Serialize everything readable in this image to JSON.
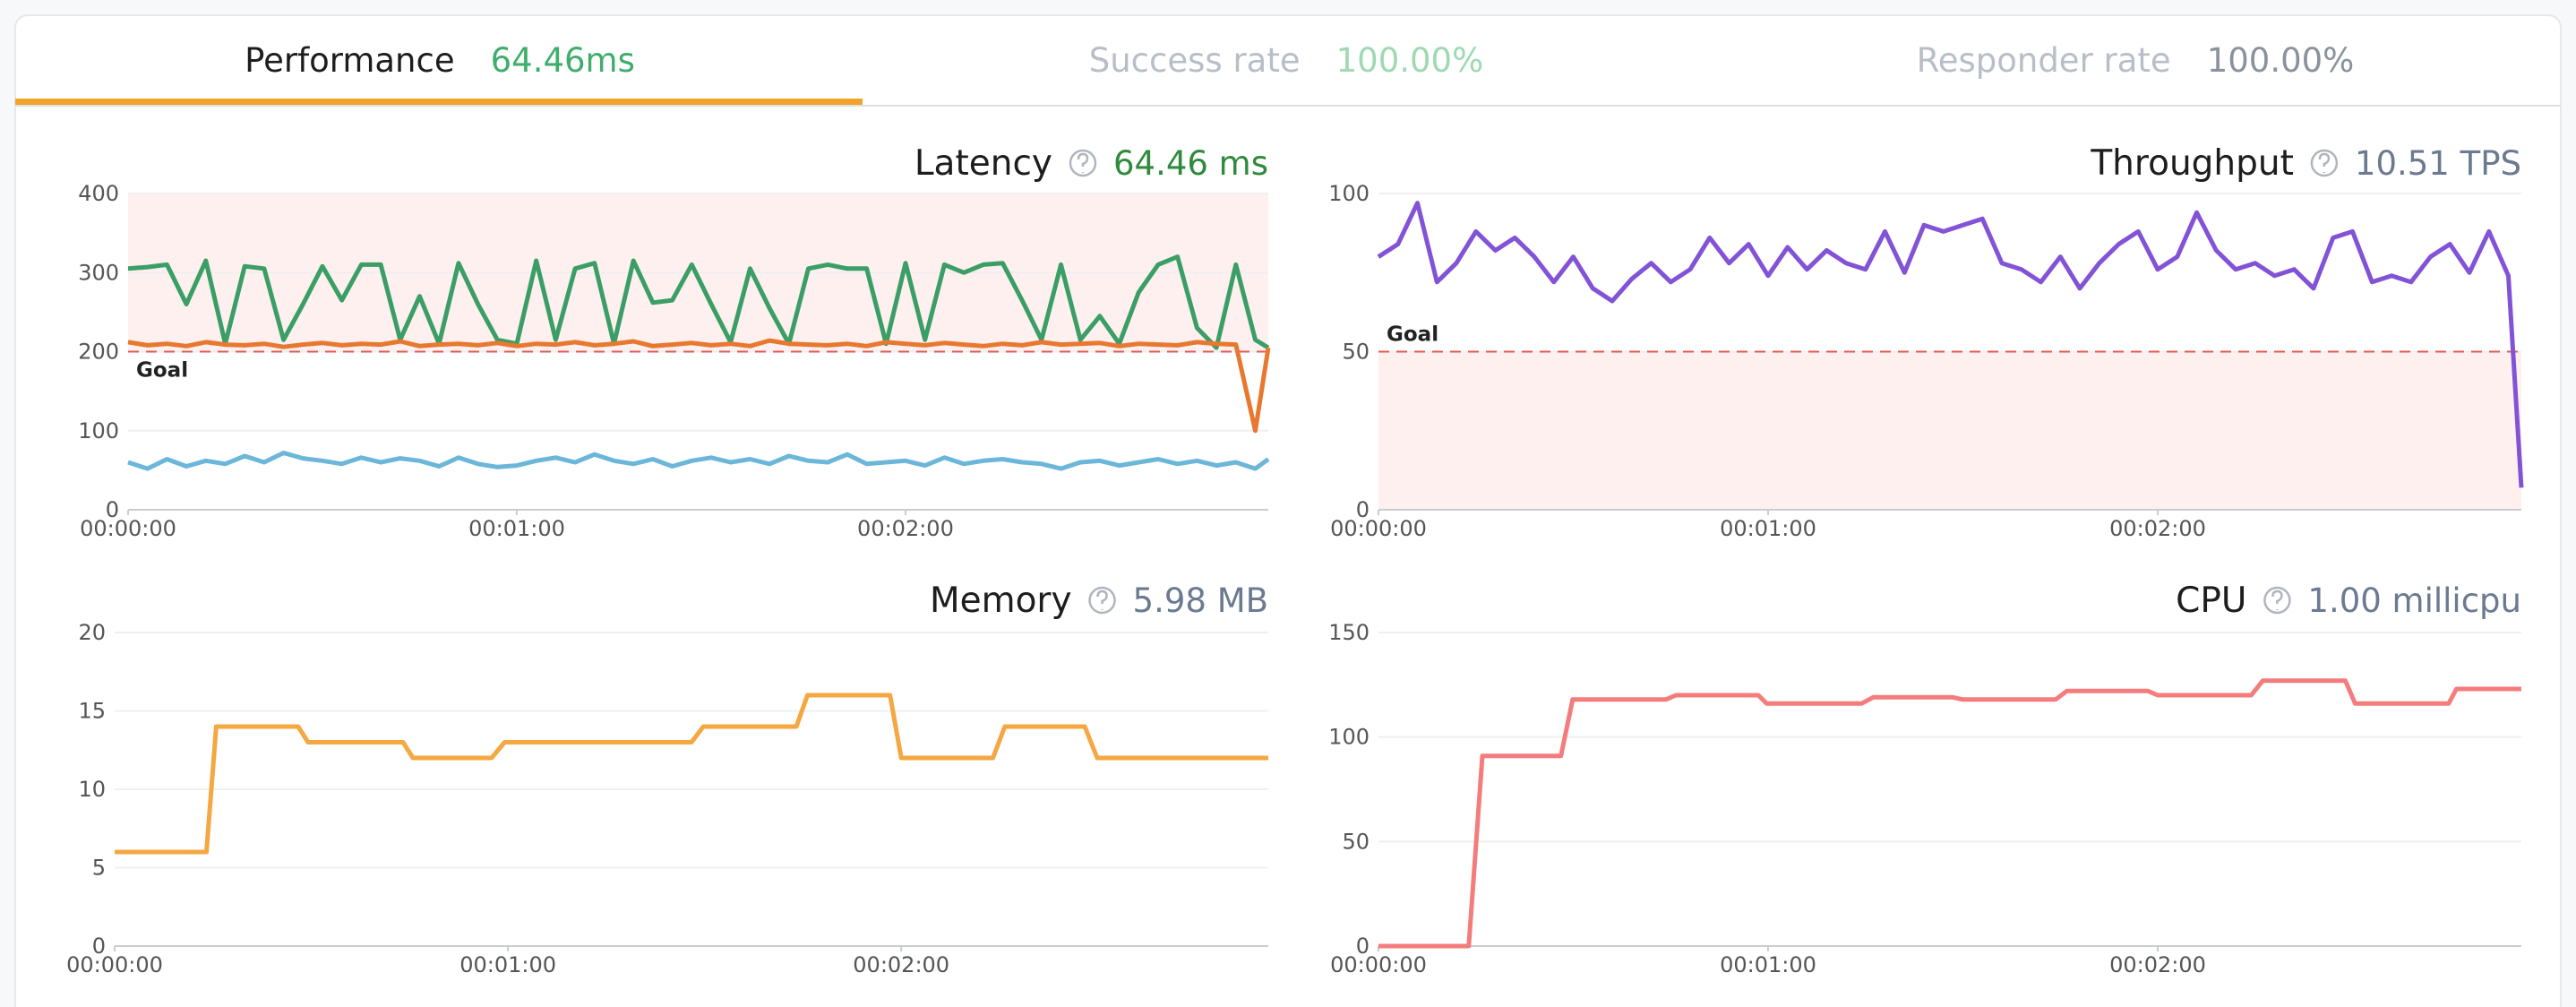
{
  "tabs": [
    {
      "label": "Performance",
      "value": "64.46ms"
    },
    {
      "label": "Success rate",
      "value": "100.00%"
    },
    {
      "label": "Responder rate",
      "value": "100.00%"
    }
  ],
  "chart_data": [
    {
      "type": "line",
      "title": "Latency",
      "summary": "64.46 ms",
      "summary_color": "#2f8a3c",
      "x": [
        0,
        3,
        6,
        9,
        12,
        15,
        18,
        21,
        24,
        27,
        30,
        33,
        36,
        39,
        42,
        45,
        48,
        51,
        54,
        57,
        60,
        63,
        66,
        69,
        72,
        75,
        78,
        81,
        84,
        87,
        90,
        93,
        96,
        99,
        102,
        105,
        108,
        111,
        114,
        117,
        120,
        123,
        126,
        129,
        132,
        135,
        138,
        141,
        144,
        147,
        150,
        153,
        156,
        159,
        162,
        165,
        168,
        171,
        174,
        176
      ],
      "xlim": [
        0,
        176
      ],
      "xticks": [
        {
          "value": 0,
          "label": "00:00:00"
        },
        {
          "value": 60,
          "label": "00:01:00"
        },
        {
          "value": 120,
          "label": "00:02:00"
        }
      ],
      "ylim": [
        0,
        400
      ],
      "yticks": [
        0,
        100,
        200,
        300,
        400
      ],
      "grid": true,
      "goal": {
        "value": 200,
        "label": "Goal",
        "shade": "above"
      },
      "series": [
        {
          "color": "#3a9e66",
          "values": [
            305,
            307,
            310,
            260,
            315,
            210,
            308,
            305,
            215,
            260,
            308,
            265,
            310,
            310,
            215,
            270,
            210,
            312,
            260,
            215,
            210,
            315,
            215,
            305,
            312,
            210,
            315,
            262,
            265,
            310,
            260,
            212,
            305,
            255,
            210,
            305,
            310,
            305,
            305,
            210,
            312,
            215,
            310,
            300,
            310,
            312,
            265,
            215,
            310,
            215,
            245,
            210,
            275,
            310,
            320,
            230,
            205,
            310,
            215,
            205
          ]
        },
        {
          "color": "#e8782f",
          "values": [
            212,
            208,
            210,
            207,
            212,
            209,
            208,
            210,
            206,
            209,
            211,
            208,
            210,
            209,
            213,
            207,
            209,
            210,
            208,
            211,
            207,
            210,
            209,
            212,
            208,
            210,
            213,
            207,
            209,
            211,
            208,
            210,
            207,
            214,
            210,
            209,
            208,
            210,
            207,
            212,
            210,
            208,
            211,
            209,
            207,
            210,
            208,
            212,
            209,
            210,
            211,
            207,
            210,
            209,
            208,
            212,
            210,
            209,
            100,
            205
          ]
        },
        {
          "color": "#6bb6d9",
          "values": [
            60,
            52,
            64,
            55,
            62,
            58,
            68,
            60,
            72,
            65,
            62,
            58,
            66,
            60,
            65,
            62,
            55,
            66,
            58,
            54,
            56,
            62,
            66,
            60,
            70,
            62,
            58,
            64,
            55,
            62,
            66,
            60,
            64,
            58,
            68,
            62,
            60,
            70,
            58,
            60,
            62,
            56,
            66,
            58,
            62,
            64,
            60,
            58,
            52,
            60,
            62,
            56,
            60,
            64,
            58,
            62,
            56,
            60,
            52,
            64
          ]
        }
      ]
    },
    {
      "type": "line",
      "title": "Throughput",
      "summary": "10.51 TPS",
      "summary_color": "#6b7a90",
      "x": [
        0,
        3,
        6,
        9,
        12,
        15,
        18,
        21,
        24,
        27,
        30,
        33,
        36,
        39,
        42,
        45,
        48,
        51,
        54,
        57,
        60,
        63,
        66,
        69,
        72,
        75,
        78,
        81,
        84,
        87,
        90,
        93,
        96,
        99,
        102,
        105,
        108,
        111,
        114,
        117,
        120,
        123,
        126,
        129,
        132,
        135,
        138,
        141,
        144,
        147,
        150,
        153,
        156,
        159,
        162,
        165,
        168,
        171,
        174,
        176
      ],
      "xlim": [
        0,
        176
      ],
      "xticks": [
        {
          "value": 0,
          "label": "00:00:00"
        },
        {
          "value": 60,
          "label": "00:01:00"
        },
        {
          "value": 120,
          "label": "00:02:00"
        }
      ],
      "ylim": [
        0,
        100
      ],
      "yticks": [
        0,
        50,
        100
      ],
      "grid": true,
      "goal": {
        "value": 50,
        "label": "Goal",
        "shade": "below"
      },
      "series": [
        {
          "color": "#8253d6",
          "values": [
            80,
            84,
            97,
            72,
            78,
            88,
            82,
            86,
            80,
            72,
            80,
            70,
            66,
            73,
            78,
            72,
            76,
            86,
            78,
            84,
            74,
            83,
            76,
            82,
            78,
            76,
            88,
            75,
            90,
            88,
            90,
            92,
            78,
            76,
            72,
            80,
            70,
            78,
            84,
            88,
            76,
            80,
            94,
            82,
            76,
            78,
            74,
            76,
            70,
            86,
            88,
            72,
            74,
            72,
            80,
            84,
            75,
            88,
            74,
            7
          ]
        }
      ]
    },
    {
      "type": "line",
      "title": "Memory",
      "summary": "5.98 MB",
      "summary_color": "#6b7a90",
      "x": [
        0,
        14,
        15.5,
        28,
        29.5,
        44,
        45.5,
        57.5,
        59.5,
        88,
        89.8,
        104,
        105.7,
        118.3,
        120,
        134,
        135.8,
        148,
        149.9,
        176
      ],
      "xlim": [
        0,
        176
      ],
      "xticks": [
        {
          "value": 0,
          "label": "00:00:00"
        },
        {
          "value": 60,
          "label": "00:01:00"
        },
        {
          "value": 120,
          "label": "00:02:00"
        }
      ],
      "ylim": [
        0,
        20
      ],
      "yticks": [
        0,
        5,
        10,
        15,
        20
      ],
      "grid": true,
      "series": [
        {
          "color": "#f5a742",
          "values": [
            6,
            6,
            14,
            14,
            13,
            13,
            12,
            12,
            13,
            13,
            14,
            14,
            16,
            16,
            12,
            12,
            14,
            14,
            12,
            12
          ]
        }
      ]
    },
    {
      "type": "line",
      "title": "CPU",
      "summary": "1.00 millicpu",
      "summary_color": "#6b7a90",
      "x": [
        0,
        13.9,
        16,
        28.1,
        29.9,
        44.3,
        45.8,
        58.5,
        59.8,
        74.4,
        76.2,
        88.4,
        89.9,
        104.3,
        106,
        118.5,
        120,
        134.4,
        136.2,
        148.9,
        150.4,
        164.8,
        166,
        176
      ],
      "xlim": [
        0,
        176
      ],
      "xticks": [
        {
          "value": 0,
          "label": "00:00:00"
        },
        {
          "value": 60,
          "label": "00:01:00"
        },
        {
          "value": 120,
          "label": "00:02:00"
        }
      ],
      "ylim": [
        0,
        150
      ],
      "yticks": [
        0,
        50,
        100,
        150
      ],
      "grid": true,
      "series": [
        {
          "color": "#f47c7c",
          "values": [
            0,
            0,
            91,
            91,
            118,
            118,
            120,
            120,
            116,
            116,
            119,
            119,
            118,
            118,
            122,
            122,
            120,
            120,
            127,
            127,
            116,
            116,
            123,
            123
          ]
        }
      ]
    }
  ]
}
